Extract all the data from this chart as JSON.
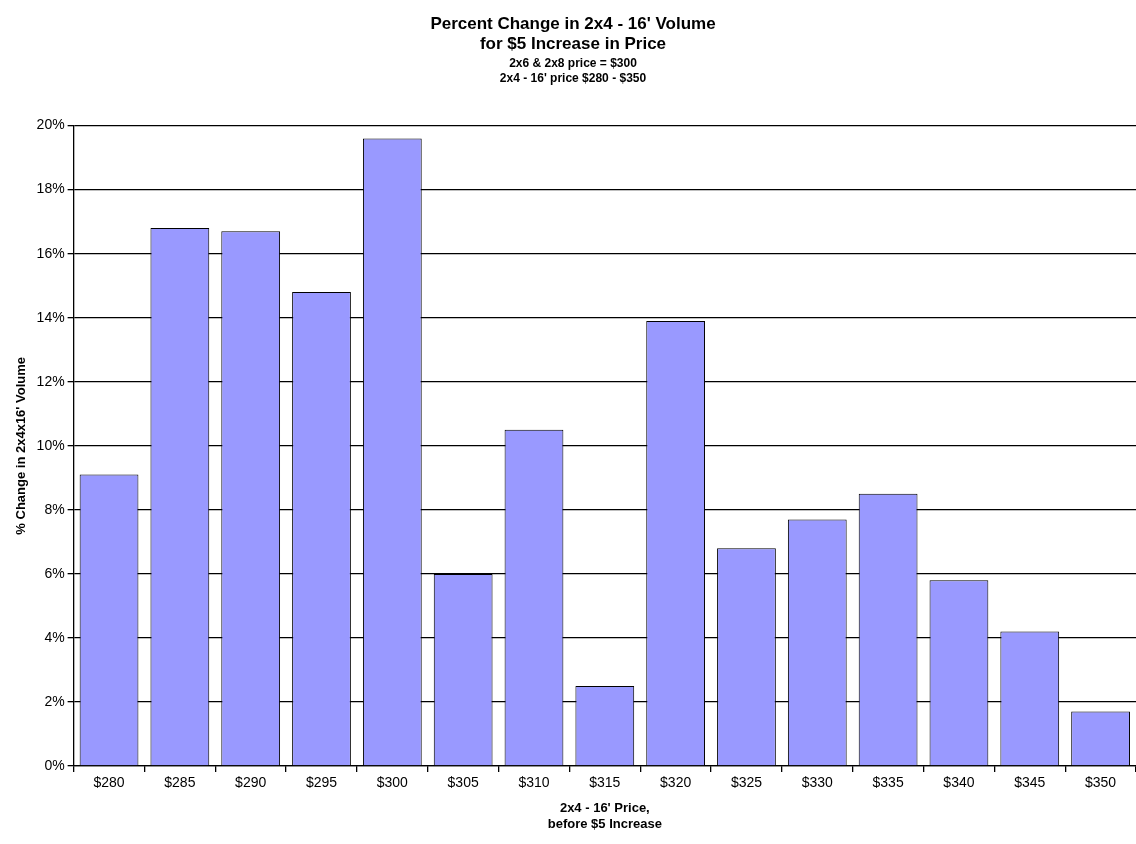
{
  "chart_data": {
    "type": "bar",
    "title": "Percent Change in 2x4 - 16' Volume\nfor $5 Increase in Price",
    "subtitle": "2x6 & 2x8 price = $300\n2x4 - 16' price $280 - $350",
    "xlabel": "2x4 - 16' Price,\nbefore $5 Increase",
    "ylabel": "% Change in 2x4x16' Volume",
    "categories": [
      "$280",
      "$285",
      "$290",
      "$295",
      "$300",
      "$305",
      "$310",
      "$315",
      "$320",
      "$325",
      "$330",
      "$335",
      "$340",
      "$345",
      "$350"
    ],
    "values": [
      9.1,
      16.8,
      16.7,
      14.8,
      19.6,
      6.0,
      10.5,
      2.5,
      13.9,
      6.8,
      7.7,
      8.5,
      5.8,
      4.2,
      1.7
    ],
    "color": "#9999ff",
    "ylim": [
      0,
      20
    ],
    "yticks": [
      {
        "value": 0,
        "label": "0%"
      },
      {
        "value": 2,
        "label": "2%"
      },
      {
        "value": 4,
        "label": "4%"
      },
      {
        "value": 6,
        "label": "6%"
      },
      {
        "value": 8,
        "label": "8%"
      },
      {
        "value": 10,
        "label": "10%"
      },
      {
        "value": 12,
        "label": "12%"
      },
      {
        "value": 14,
        "label": "14%"
      },
      {
        "value": 16,
        "label": "16%"
      },
      {
        "value": 18,
        "label": "18%"
      },
      {
        "value": 20,
        "label": "20%"
      }
    ],
    "grid": "y",
    "legend": false
  }
}
